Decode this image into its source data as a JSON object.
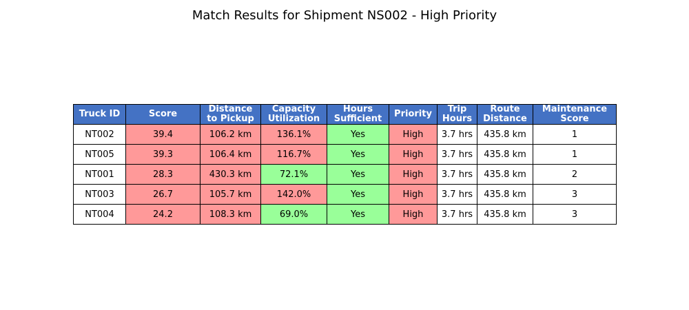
{
  "chart_data": {
    "type": "table",
    "title": "Match Results for Shipment NS002 - High Priority",
    "columns": [
      "Truck ID",
      "Score",
      "Distance\nto Pickup",
      "Capacity\nUtilization",
      "Hours\nSufficient",
      "Priority",
      "Trip\nHours",
      "Route\nDistance",
      "Maintenance\nScore"
    ],
    "rows": [
      [
        "NT002",
        "39.4",
        "106.2 km",
        "136.1%",
        "Yes",
        "High",
        "3.7 hrs",
        "435.8 km",
        "1"
      ],
      [
        "NT005",
        "39.3",
        "106.4 km",
        "116.7%",
        "Yes",
        "High",
        "3.7 hrs",
        "435.8 km",
        "1"
      ],
      [
        "NT001",
        "28.3",
        "430.3 km",
        "72.1%",
        "Yes",
        "High",
        "3.7 hrs",
        "435.8 km",
        "2"
      ],
      [
        "NT003",
        "26.7",
        "105.7 km",
        "142.0%",
        "Yes",
        "High",
        "3.7 hrs",
        "435.8 km",
        "3"
      ],
      [
        "NT004",
        "24.2",
        "108.3 km",
        "69.0%",
        "Yes",
        "High",
        "3.7 hrs",
        "435.8 km",
        "3"
      ]
    ],
    "cell_status": [
      [
        "none",
        "bad",
        "bad",
        "bad",
        "good",
        "bad",
        "none",
        "none",
        "none"
      ],
      [
        "none",
        "bad",
        "bad",
        "bad",
        "good",
        "bad",
        "none",
        "none",
        "none"
      ],
      [
        "none",
        "bad",
        "bad",
        "good",
        "good",
        "bad",
        "none",
        "none",
        "none"
      ],
      [
        "none",
        "bad",
        "bad",
        "bad",
        "good",
        "bad",
        "none",
        "none",
        "none"
      ],
      [
        "none",
        "bad",
        "bad",
        "good",
        "good",
        "bad",
        "none",
        "none",
        "none"
      ]
    ],
    "colors": {
      "header_bg": "#4472c4",
      "header_text": "#ffffff",
      "bad": "#ff9999",
      "good": "#99ff99",
      "none": "#ffffff"
    }
  }
}
